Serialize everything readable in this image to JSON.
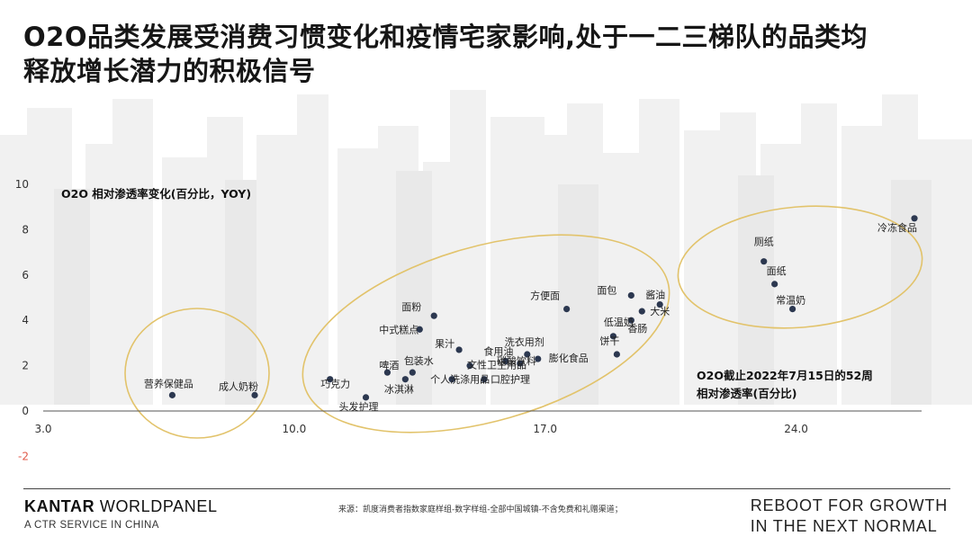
{
  "title": {
    "line1": "O2O品类发展受消费习惯变化和疫情宅家影响,处于一二三梯队的品类均",
    "line2": "释放增长潜力的积极信号"
  },
  "chart_data": {
    "type": "scatter",
    "ylabel": "O2O 相对渗透率变化(百分比，YOY)",
    "xlabel_line1": "O2O截止2022年7月15日的52周",
    "xlabel_line2": "相对渗透率(百分比)",
    "xlim": [
      3.0,
      27.5
    ],
    "ylim": [
      -2,
      10
    ],
    "x_ticks": [
      "3.0",
      "10.0",
      "17.0",
      "24.0"
    ],
    "y_ticks": [
      "-2",
      "0",
      "2",
      "4",
      "6",
      "8",
      "10"
    ],
    "point_color": "#2c3850",
    "cluster_color": "#e2c36b",
    "points": [
      {
        "label": "营养保健品",
        "x": 6.6,
        "y": 0.7
      },
      {
        "label": "成人奶粉",
        "x": 8.9,
        "y": 0.7
      },
      {
        "label": "巧克力",
        "x": 11.0,
        "y": 1.4
      },
      {
        "label": "头发护理",
        "x": 12.0,
        "y": 0.6
      },
      {
        "label": "啤酒",
        "x": 12.6,
        "y": 1.7
      },
      {
        "label": "冰淇淋",
        "x": 13.1,
        "y": 1.4
      },
      {
        "label": "包装水",
        "x": 13.3,
        "y": 1.7
      },
      {
        "label": "中式糕点",
        "x": 13.5,
        "y": 3.6
      },
      {
        "label": "面粉",
        "x": 13.9,
        "y": 4.2
      },
      {
        "label": "个人洗涤用品",
        "x": 14.4,
        "y": 1.4
      },
      {
        "label": "果汁",
        "x": 14.6,
        "y": 2.7
      },
      {
        "label": "文性卫生用品",
        "x": 14.9,
        "y": 2.0
      },
      {
        "label": "口腔护理",
        "x": 15.3,
        "y": 1.4
      },
      {
        "label": "食用油",
        "x": 15.9,
        "y": 2.2
      },
      {
        "label": "碳酸饮料",
        "x": 16.3,
        "y": 2.1
      },
      {
        "label": "洗衣用剂",
        "x": 16.5,
        "y": 2.5
      },
      {
        "label": "膨化食品",
        "x": 16.8,
        "y": 2.3
      },
      {
        "label": "方便面",
        "x": 17.6,
        "y": 4.5
      },
      {
        "label": "低温奶",
        "x": 18.9,
        "y": 3.3
      },
      {
        "label": "饼干",
        "x": 19.0,
        "y": 2.5
      },
      {
        "label": "香肠",
        "x": 19.4,
        "y": 4.0
      },
      {
        "label": "面包",
        "x": 19.4,
        "y": 5.1
      },
      {
        "label": "大米",
        "x": 19.7,
        "y": 4.4
      },
      {
        "label": "酱油",
        "x": 20.2,
        "y": 4.7
      },
      {
        "label": "厕纸",
        "x": 23.1,
        "y": 6.6
      },
      {
        "label": "面纸",
        "x": 23.4,
        "y": 5.6
      },
      {
        "label": "常温奶",
        "x": 23.9,
        "y": 4.5
      },
      {
        "label": "冷冻食品",
        "x": 27.3,
        "y": 8.5
      }
    ]
  },
  "footer": {
    "brand_bold": "KANTAR",
    "brand_rest": " WORLDPANEL",
    "brand_sub": "A CTR SERVICE IN CHINA",
    "source": "来源：凯度消费者指数家庭样组-数字样组-全部中国城镇-不含免费和礼赠渠道；",
    "tagline_line1": "REBOOT FOR GROWTH",
    "tagline_line2": "IN THE NEXT NORMAL"
  }
}
